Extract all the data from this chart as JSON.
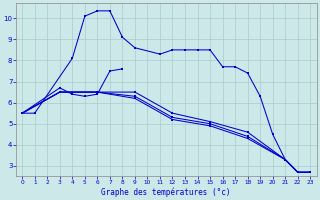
{
  "xlabel": "Graphe des températures (°c)",
  "background_color": "#cce8e8",
  "grid_color": "#aacccc",
  "line_color": "#0000cc",
  "xlim": [
    -0.5,
    23.5
  ],
  "ylim": [
    2.5,
    10.7
  ],
  "yticks": [
    3,
    4,
    5,
    6,
    7,
    8,
    9,
    10
  ],
  "xticks": [
    0,
    1,
    2,
    3,
    4,
    5,
    6,
    7,
    8,
    9,
    10,
    11,
    12,
    13,
    14,
    15,
    16,
    17,
    18,
    19,
    20,
    21,
    22,
    23
  ],
  "line1_x": [
    0,
    1,
    4,
    5,
    6,
    7,
    8,
    9,
    11,
    12,
    13,
    14,
    15,
    16,
    17,
    18,
    19,
    20,
    21,
    22,
    23
  ],
  "line1_y": [
    5.5,
    5.5,
    8.1,
    10.1,
    10.35,
    10.35,
    9.1,
    8.6,
    8.3,
    8.5,
    8.5,
    8.5,
    8.5,
    7.7,
    7.7,
    7.4,
    6.3,
    4.5,
    3.3,
    2.7,
    2.7
  ],
  "line2_x": [
    0,
    3,
    4,
    5,
    6,
    7,
    8
  ],
  "line2_y": [
    5.5,
    6.7,
    6.4,
    6.3,
    6.4,
    7.5,
    7.6
  ],
  "line3_x": [
    0,
    3,
    6,
    9,
    12,
    15,
    18,
    21,
    22,
    23
  ],
  "line3_y": [
    5.5,
    6.5,
    6.5,
    6.5,
    5.5,
    5.1,
    4.6,
    3.3,
    2.7,
    2.7
  ],
  "line4_x": [
    0,
    3,
    6,
    9,
    12,
    15,
    18,
    21,
    22,
    23
  ],
  "line4_y": [
    5.5,
    6.5,
    6.5,
    6.3,
    5.3,
    5.0,
    4.4,
    3.3,
    2.7,
    2.7
  ],
  "line5_x": [
    0,
    3,
    6,
    9,
    12,
    15,
    18,
    21,
    22,
    23
  ],
  "line5_y": [
    5.5,
    6.5,
    6.5,
    6.2,
    5.2,
    4.9,
    4.3,
    3.3,
    2.7,
    2.7
  ]
}
